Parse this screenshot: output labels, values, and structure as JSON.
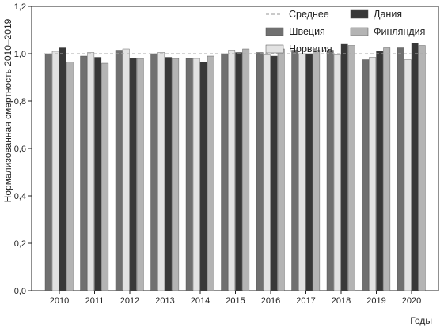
{
  "chart_data": {
    "type": "bar",
    "title": "",
    "xlabel": "Годы",
    "ylabel": "Нормализованная смертность 2010–2019",
    "categories": [
      "2010",
      "2011",
      "2012",
      "2013",
      "2014",
      "2015",
      "2016",
      "2017",
      "2018",
      "2019",
      "2020"
    ],
    "ylim": [
      0,
      1.2
    ],
    "yticks": [
      "0,0",
      "0,2",
      "0,4",
      "0,6",
      "0,8",
      "1,0",
      "1,2"
    ],
    "grid": false,
    "legend_position": "top-right",
    "series": [
      {
        "name": "Швеция",
        "color": "#707070",
        "values": [
          1.0,
          0.99,
          1.015,
          1.0,
          0.98,
          1.0,
          1.005,
          1.015,
          1.015,
          0.975,
          1.025
        ]
      },
      {
        "name": "Норвегия",
        "color": "#e2e2e2",
        "values": [
          1.01,
          1.005,
          1.02,
          1.005,
          0.98,
          1.015,
          0.995,
          1.0,
          0.995,
          0.985,
          0.975
        ]
      },
      {
        "name": "Дания",
        "color": "#383838",
        "values": [
          1.025,
          0.985,
          0.98,
          0.985,
          0.965,
          1.005,
          0.99,
          1.0,
          1.04,
          1.01,
          1.045
        ]
      },
      {
        "name": "Финляндия",
        "color": "#b4b4b4",
        "values": [
          0.965,
          0.96,
          0.98,
          0.98,
          0.99,
          1.02,
          1.02,
          1.015,
          1.035,
          1.025,
          1.035
        ]
      }
    ],
    "reference_line": {
      "name": "Среднее",
      "value": 1.0,
      "color": "#aaaaaa"
    }
  }
}
